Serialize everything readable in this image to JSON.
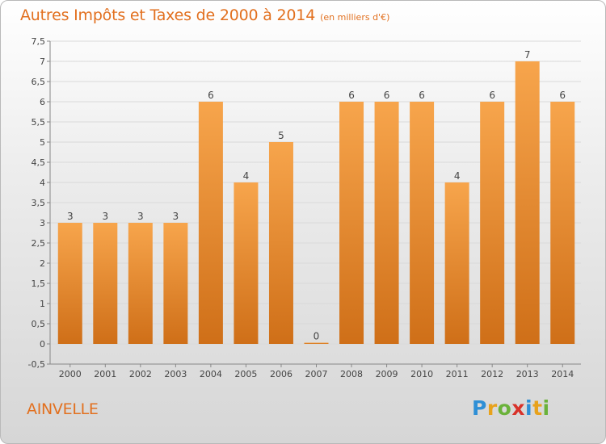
{
  "header": {
    "title": "Autres Impôts et Taxes de 2000 à 2014",
    "unit": "(en milliers d'€)"
  },
  "footer": {
    "town": "AINVELLE",
    "brand": "Proxiti",
    "brand_letters": [
      {
        "ch": "P",
        "color": "#2e8fd6"
      },
      {
        "ch": "r",
        "color": "#e8a21c"
      },
      {
        "ch": "o",
        "color": "#6ab23a"
      },
      {
        "ch": "x",
        "color": "#d8322a"
      },
      {
        "ch": "i",
        "color": "#2e8fd6"
      },
      {
        "ch": "t",
        "color": "#e8a21c"
      },
      {
        "ch": "i",
        "color": "#6ab23a"
      }
    ]
  },
  "colors": {
    "title": "#e2701f",
    "bar_top": "#f7a54c",
    "bar_bottom": "#cf6f18",
    "grid": "#d9d9d9",
    "axis": "#888888",
    "text": "#444444"
  },
  "chart_data": {
    "type": "bar",
    "title": "Autres Impôts et Taxes de 2000 à 2014",
    "xlabel": "",
    "ylabel": "",
    "categories": [
      "2000",
      "2001",
      "2002",
      "2003",
      "2004",
      "2005",
      "2006",
      "2007",
      "2008",
      "2009",
      "2010",
      "2011",
      "2012",
      "2013",
      "2014"
    ],
    "values": [
      3,
      3,
      3,
      3,
      6,
      4,
      5,
      0,
      6,
      6,
      6,
      4,
      6,
      7,
      6
    ],
    "data_labels": [
      "3",
      "3",
      "3",
      "3",
      "6",
      "4",
      "5",
      "0",
      "6",
      "6",
      "6",
      "4",
      "6",
      "7",
      "6"
    ],
    "ylim": [
      -0.5,
      7.5
    ],
    "yticks": [
      -0.5,
      0,
      0.5,
      1,
      1.5,
      2,
      2.5,
      3,
      3.5,
      4,
      4.5,
      5,
      5.5,
      6,
      6.5,
      7,
      7.5
    ],
    "ytick_labels": [
      "-0,5",
      "0",
      "0,5",
      "1",
      "1,5",
      "2",
      "2,5",
      "3",
      "3,5",
      "4",
      "4,5",
      "5",
      "5,5",
      "6",
      "6,5",
      "7",
      "7,5"
    ],
    "grid": true,
    "legend": "none"
  }
}
